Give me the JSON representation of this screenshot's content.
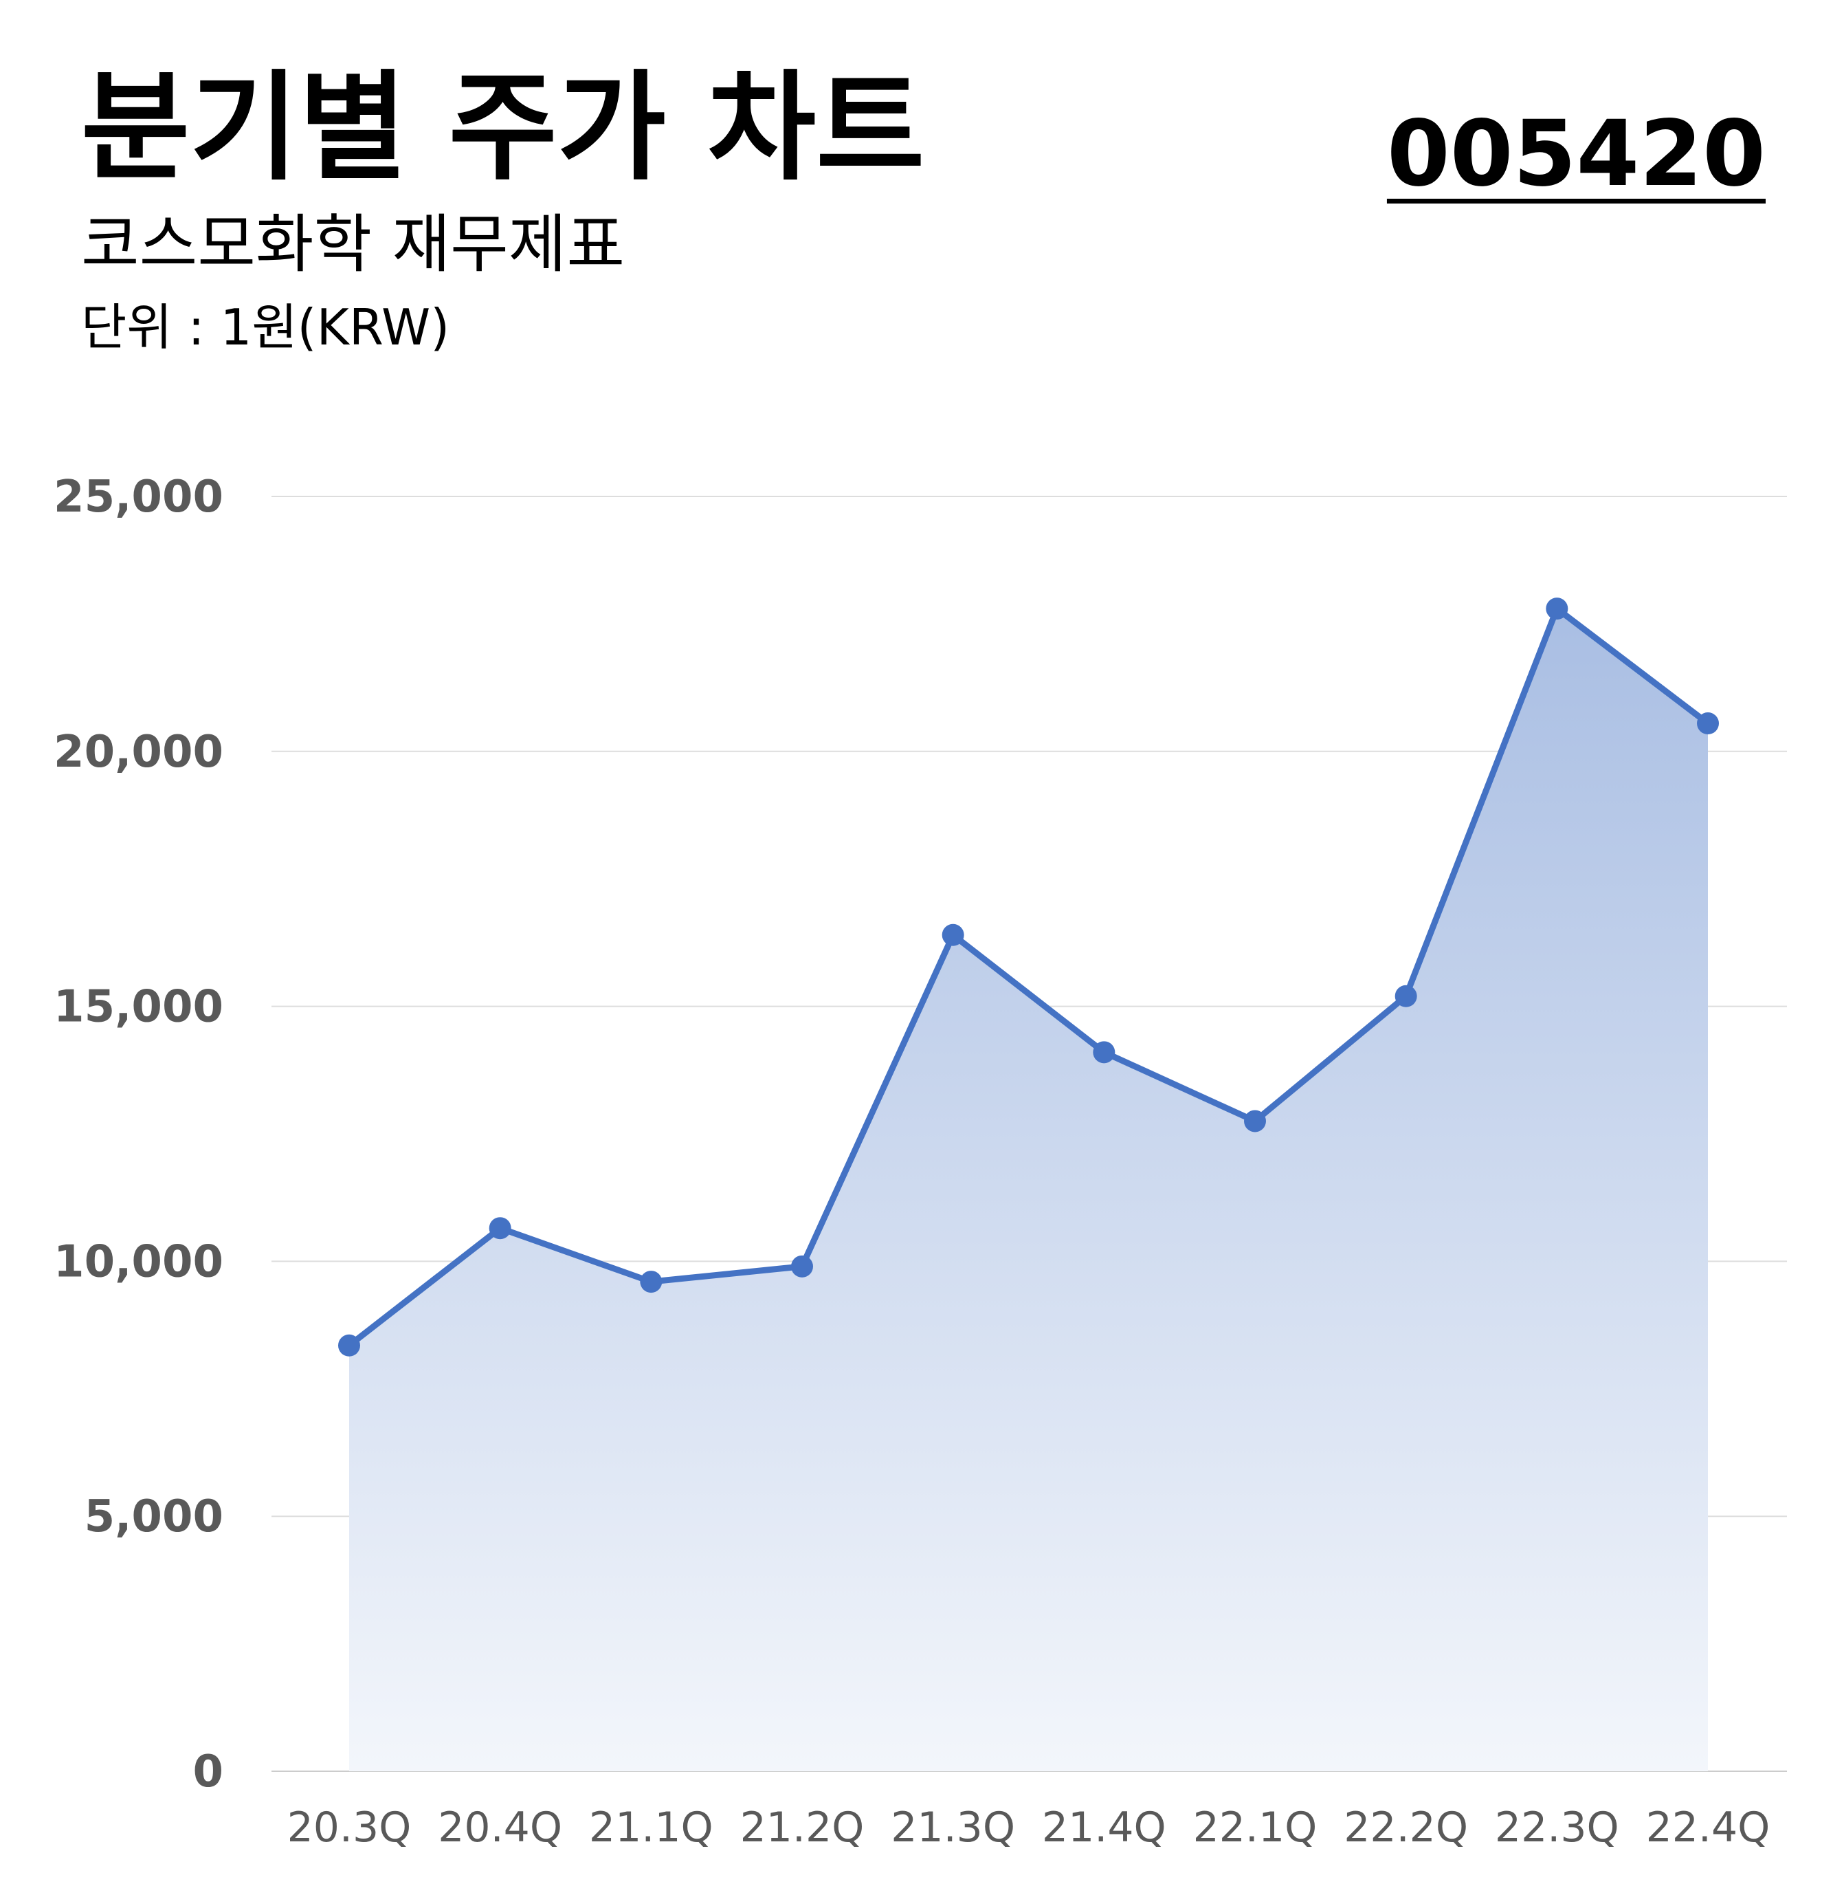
{
  "header": {
    "title": "분기별 주가 차트",
    "subtitle": "코스모화학 재무제표",
    "unit": "단위 : 1원(KRW)",
    "stock_code": "005420"
  },
  "colors": {
    "line": "#4472C4",
    "fill_top": "#A9BEE3",
    "fill_bottom": "#F3F6FB",
    "grid": "#DDDDDD",
    "tick_text": "#595959"
  },
  "chart_data": {
    "type": "area",
    "categories": [
      "20.3Q",
      "20.4Q",
      "21.1Q",
      "21.2Q",
      "21.3Q",
      "21.4Q",
      "22.1Q",
      "22.2Q",
      "22.3Q",
      "22.4Q"
    ],
    "values": [
      8350,
      10650,
      9600,
      9900,
      16400,
      14100,
      12750,
      15200,
      22800,
      20550
    ],
    "ylim": [
      0,
      25000
    ],
    "yticks": [
      0,
      5000,
      10000,
      15000,
      20000,
      25000
    ],
    "ytick_labels": [
      "0",
      "5,000",
      "10,000",
      "15,000",
      "20,000",
      "25,000"
    ],
    "grid": true,
    "legend": "none"
  }
}
